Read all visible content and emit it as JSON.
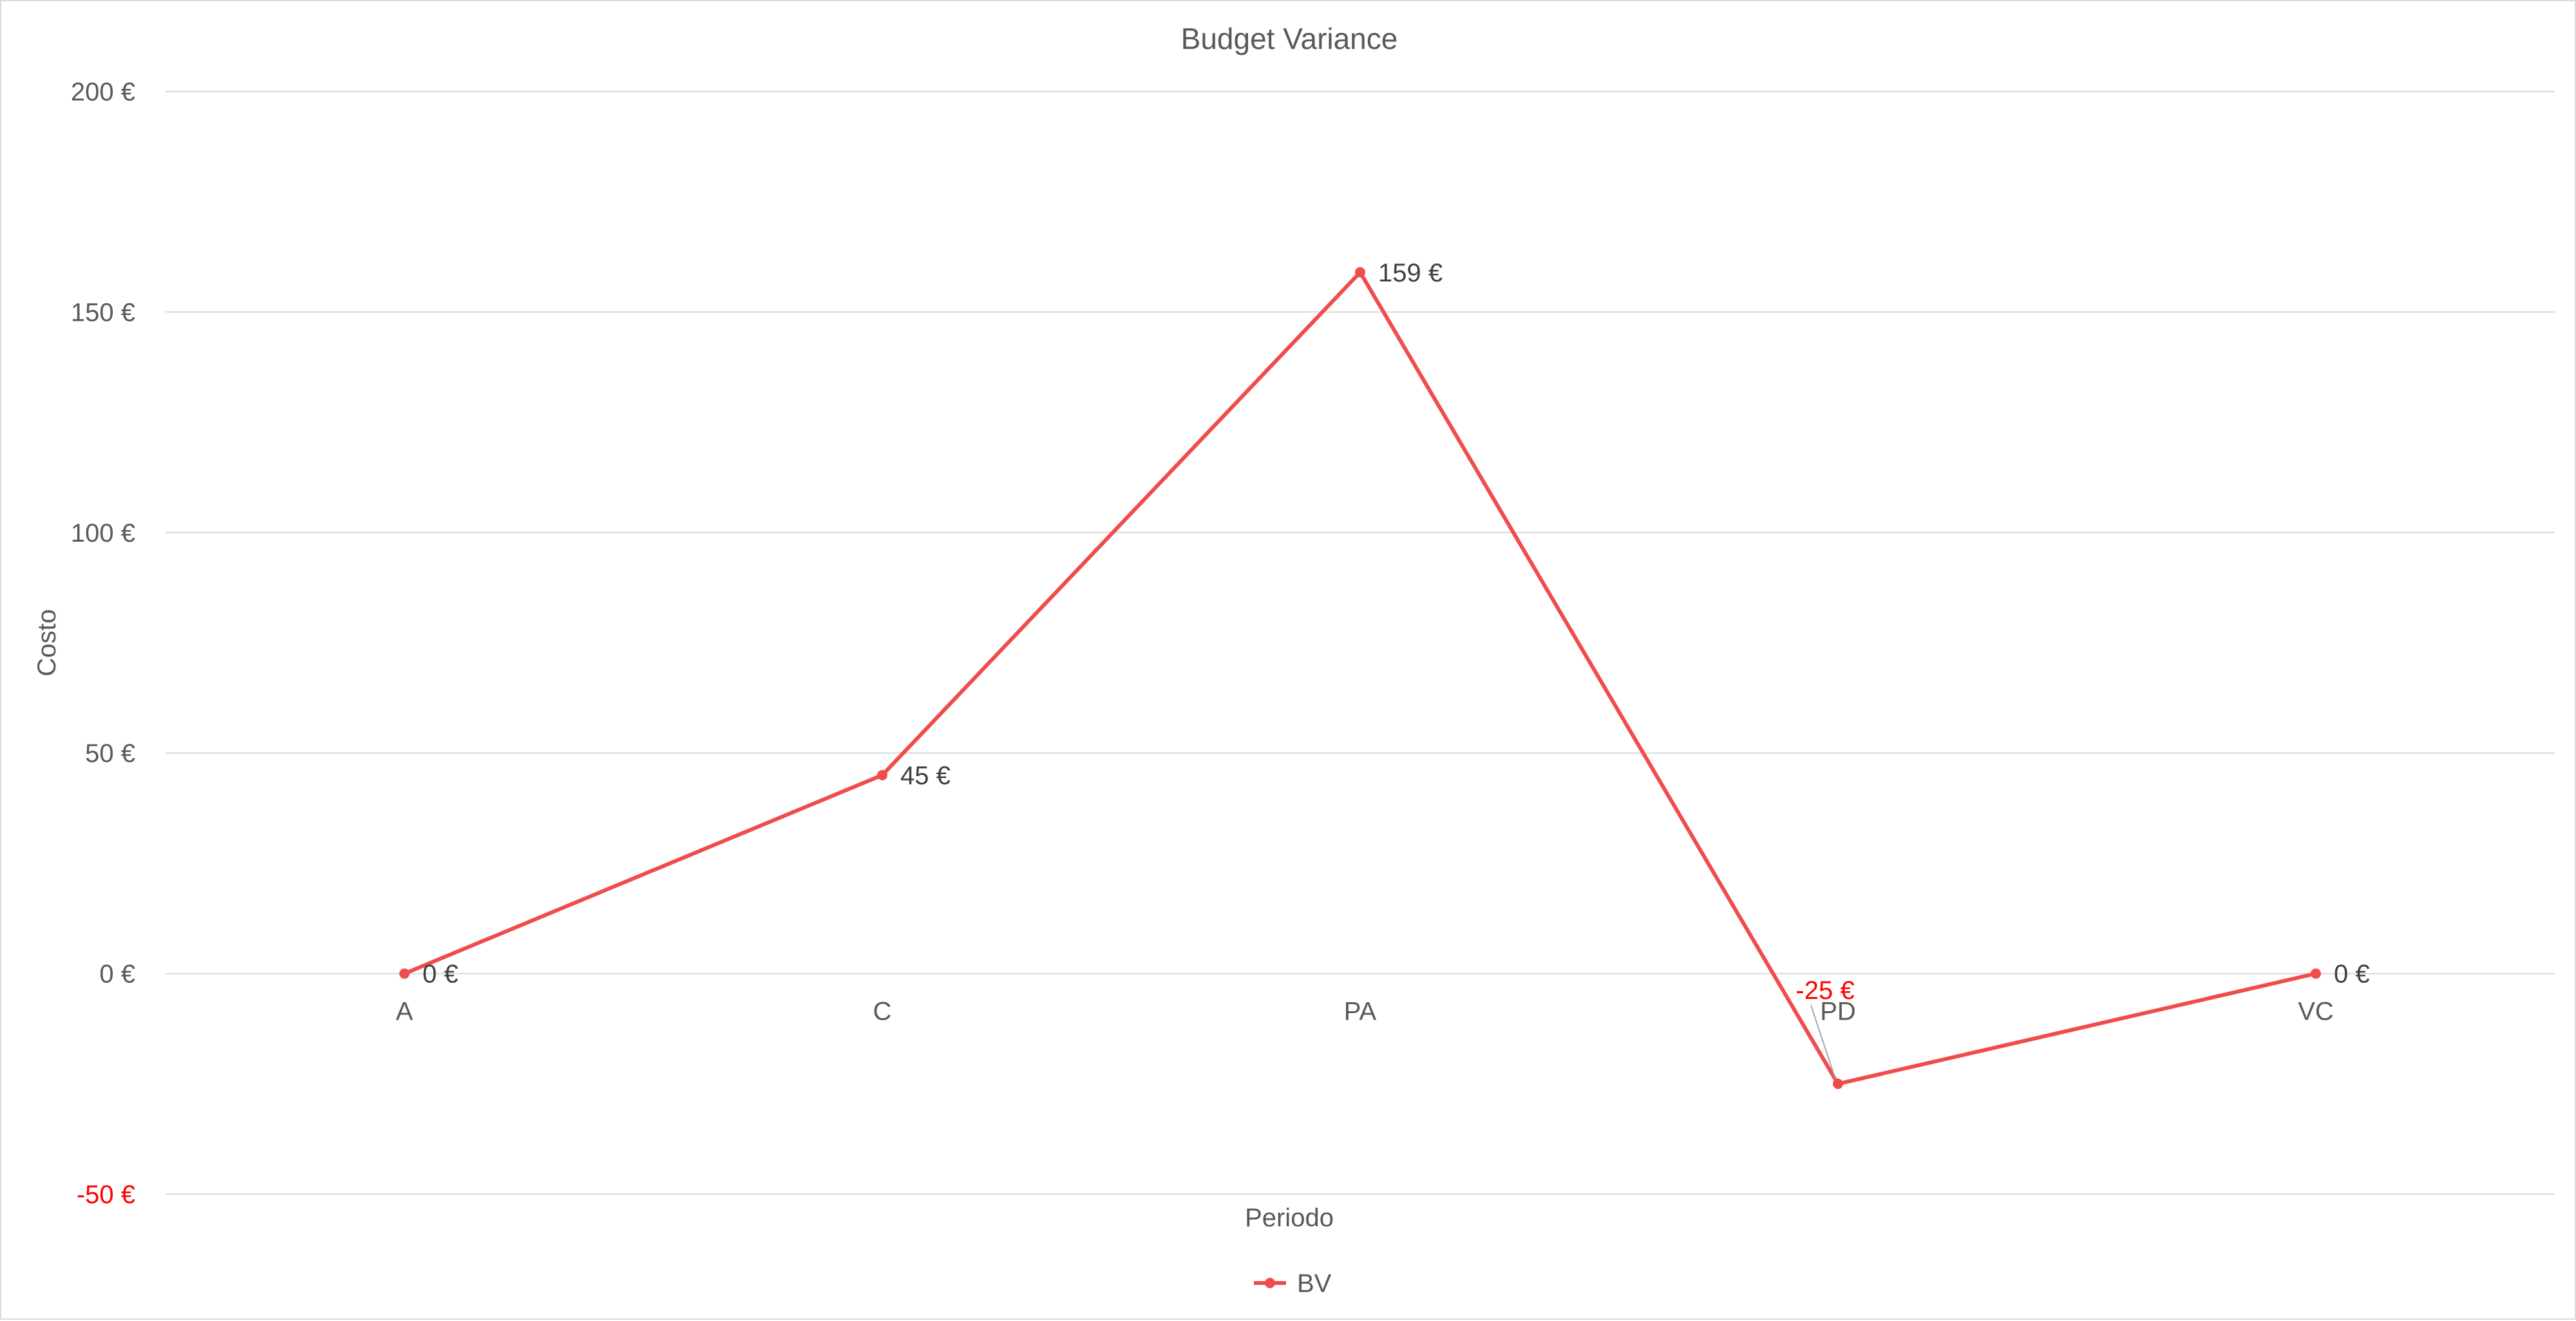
{
  "chart_data": {
    "type": "line",
    "title": "Budget Variance",
    "xlabel": "Periodo",
    "ylabel": "Costo",
    "categories": [
      "A",
      "C",
      "PA",
      "PD",
      "VC"
    ],
    "series": [
      {
        "name": "BV",
        "values": [
          0,
          45,
          159,
          -25,
          0
        ],
        "color": "#f04c4c"
      }
    ],
    "data_labels": [
      "0 €",
      "45 €",
      "159 €",
      "-25 €",
      "0 €"
    ],
    "ylim": [
      -50,
      200
    ],
    "yticks": [
      200,
      150,
      100,
      50,
      0,
      -50
    ],
    "ytick_labels": [
      "200 €",
      "150 €",
      "100 €",
      "50 €",
      "0 €",
      "-50 €"
    ],
    "negative_color": "#ff0000",
    "grid": true,
    "legend": "bottom-center"
  }
}
